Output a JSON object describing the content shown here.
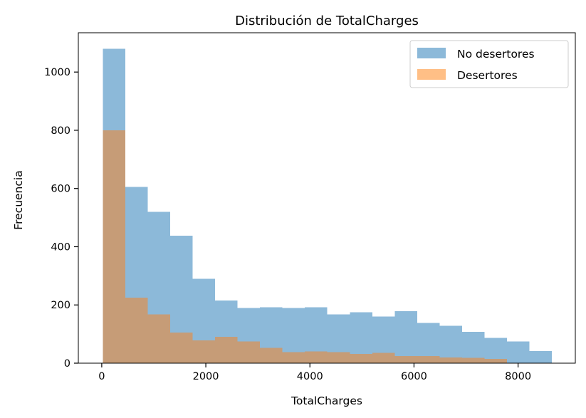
{
  "chart_data": {
    "type": "bar",
    "title": "Distribución de TotalCharges",
    "xlabel": "TotalCharges",
    "ylabel": "Frecuencia",
    "xlim": [
      -450,
      9100
    ],
    "ylim": [
      0,
      1135
    ],
    "xticks": [
      0,
      2000,
      4000,
      6000,
      8000
    ],
    "yticks": [
      0,
      200,
      400,
      600,
      800,
      1000
    ],
    "grid": false,
    "legend_position": "top-right",
    "series": [
      {
        "name": "No desertores",
        "color": "#8cb9d9",
        "bin_edges": [
          18.8,
          450.4,
          882.1,
          1313.7,
          1745.4,
          2177.0,
          2608.6,
          3040.3,
          3471.9,
          3903.6,
          4335.2,
          4766.8,
          5198.5,
          5630.1,
          6061.8,
          6493.4,
          6925.0,
          7356.7,
          7788.3,
          8220.0,
          8651.6
        ],
        "counts": [
          1080,
          605,
          520,
          438,
          290,
          215,
          190,
          192,
          190,
          192,
          168,
          175,
          160,
          178,
          138,
          128,
          108,
          87,
          75,
          42
        ]
      },
      {
        "name": "Desertores",
        "color": "#ffbf86",
        "bin_edges": [
          18.8,
          450.4,
          882.1,
          1313.7,
          1745.4,
          2177.0,
          2608.6,
          3040.3,
          3471.9,
          3903.6,
          4335.2,
          4766.8,
          5198.5,
          5630.1,
          6061.8,
          6493.4,
          6925.0,
          7356.7,
          7788.3
        ],
        "counts": [
          800,
          225,
          168,
          105,
          78,
          90,
          75,
          52,
          38,
          40,
          38,
          32,
          36,
          25,
          25,
          20,
          18,
          15
        ]
      }
    ],
    "overlap_color": "#c69c77"
  }
}
